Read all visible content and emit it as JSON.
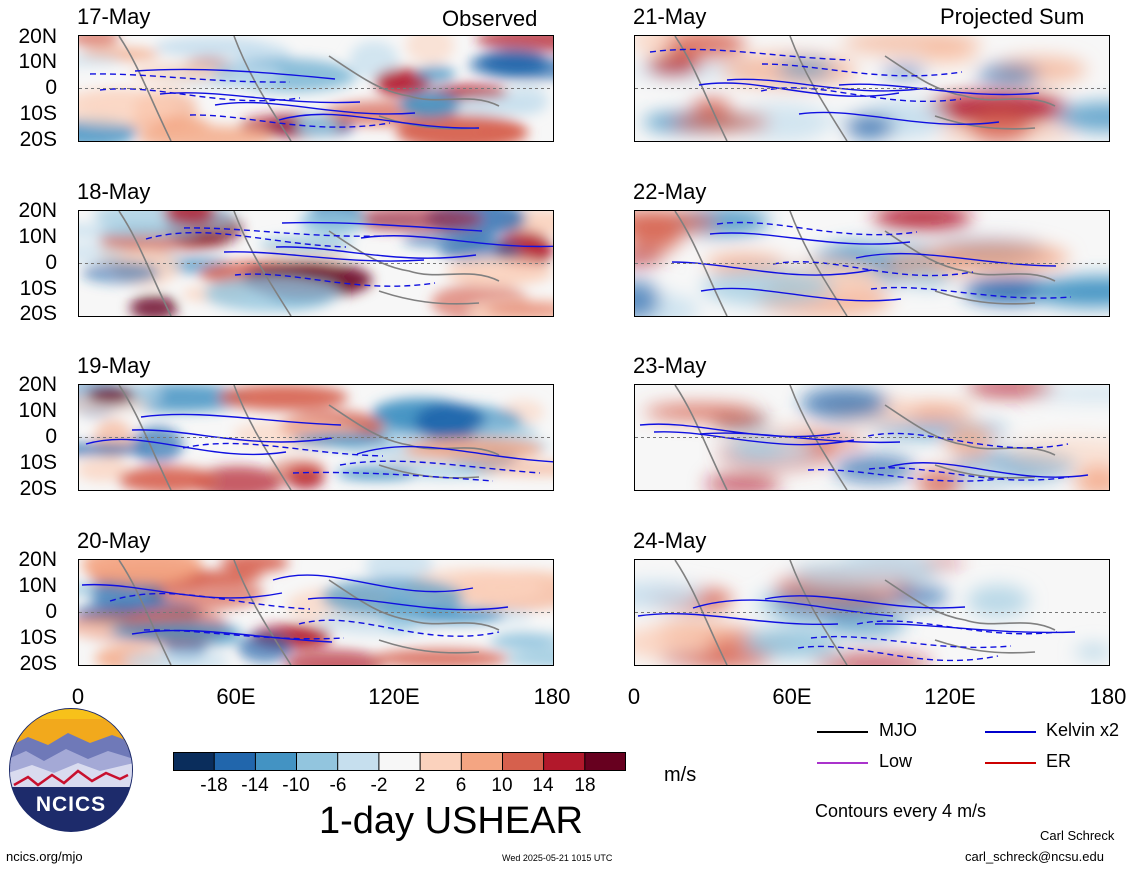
{
  "observed_label": "Observed",
  "projected_label": "Projected Sum",
  "left_dates": [
    "17-May",
    "18-May",
    "19-May",
    "20-May"
  ],
  "right_dates": [
    "21-May",
    "22-May",
    "23-May",
    "24-May"
  ],
  "lat_labels": [
    "20N",
    "10N",
    "0",
    "10S",
    "20S"
  ],
  "lon_labels": [
    "0",
    "60E",
    "120E",
    "180"
  ],
  "colorbar": {
    "ticks": [
      "-18",
      "-14",
      "-10",
      "-6",
      "-2",
      "2",
      "6",
      "10",
      "14",
      "18"
    ],
    "colors": [
      "#0a2d5c",
      "#2166ac",
      "#4393c3",
      "#92c5de",
      "#c6dfee",
      "#f7f7f7",
      "#fbd2bd",
      "#f4a582",
      "#d6604d",
      "#b2182b",
      "#67001f"
    ],
    "units": "m/s"
  },
  "title": "1-day USHEAR",
  "legend": {
    "items": [
      {
        "label": "MJO",
        "color": "#000000"
      },
      {
        "label": "Kelvin x2",
        "color": "#0000cc"
      },
      {
        "label": "Low",
        "color": "#aa33cc"
      },
      {
        "label": "ER",
        "color": "#cc0000"
      }
    ],
    "note": "Contours every 4 m/s"
  },
  "logo_text": "NCICS",
  "footer": {
    "url": "ncics.org/mjo",
    "timestamp": "Wed 2025-05-21 1015 UTC",
    "author": "Carl Schreck",
    "email": "carl_schreck@ncsu.edu"
  }
}
